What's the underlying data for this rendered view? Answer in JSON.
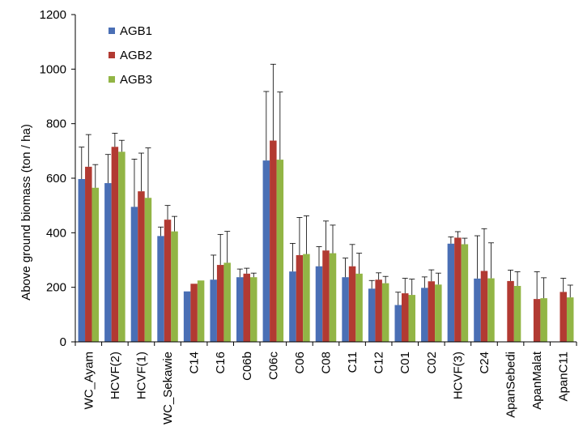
{
  "chart_data": {
    "type": "bar",
    "title": "",
    "xlabel": "",
    "ylabel": "Above ground biomass (ton / ha)",
    "ylim": [
      0,
      1200
    ],
    "yticks": [
      0,
      200,
      400,
      600,
      800,
      1000,
      1200
    ],
    "grid": false,
    "legend_position": "top-left",
    "categories": [
      "WC_Ayam",
      "HCVF(2)",
      "HCVF(1)",
      "WC_Sekawie",
      "C14",
      "C16",
      "C06b",
      "C06c",
      "C06",
      "C08",
      "C11",
      "C12",
      "C01",
      "C02",
      "HCVF(3)",
      "C24",
      "ApanSebedi",
      "ApanMalat",
      "ApanC11"
    ],
    "series": [
      {
        "name": "AGB1",
        "color": "#4a6fb5",
        "values": [
          597,
          582,
          495,
          388,
          185,
          228,
          237,
          665,
          258,
          277,
          237,
          195,
          135,
          198,
          360,
          232,
          null,
          null,
          null
        ],
        "errors": [
          117,
          105,
          175,
          33,
          0,
          90,
          30,
          253,
          103,
          72,
          70,
          30,
          47,
          40,
          25,
          157,
          null,
          null,
          null
        ]
      },
      {
        "name": "AGB2",
        "color": "#b23a32",
        "values": [
          642,
          715,
          552,
          448,
          213,
          282,
          250,
          738,
          318,
          335,
          277,
          228,
          178,
          222,
          382,
          260,
          223,
          157,
          183
        ],
        "errors": [
          118,
          50,
          140,
          52,
          0,
          112,
          20,
          280,
          138,
          108,
          80,
          25,
          55,
          42,
          22,
          155,
          40,
          100,
          50
        ]
      },
      {
        "name": "AGB3",
        "color": "#92b545",
        "values": [
          565,
          697,
          528,
          405,
          225,
          290,
          237,
          668,
          322,
          325,
          250,
          215,
          172,
          210,
          358,
          233,
          205,
          160,
          163
        ],
        "errors": [
          85,
          42,
          183,
          55,
          0,
          115,
          15,
          248,
          140,
          103,
          75,
          25,
          58,
          42,
          22,
          130,
          52,
          75,
          45
        ]
      }
    ]
  }
}
